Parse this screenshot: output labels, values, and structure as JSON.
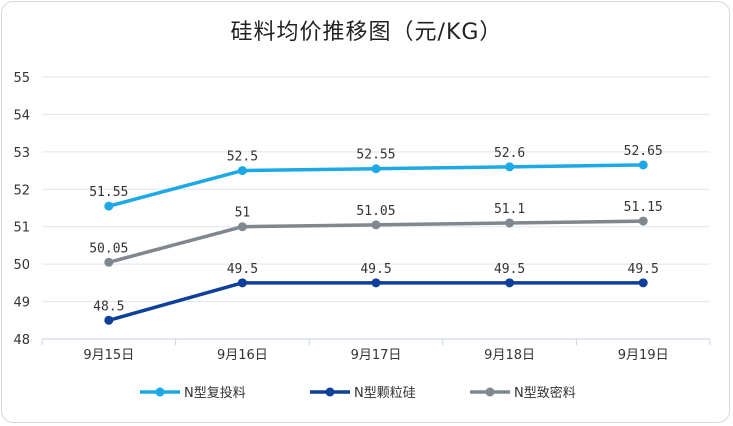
{
  "chart_data": {
    "type": "line",
    "title": "硅料均价推移图（元/KG）",
    "categories": [
      "9月15日",
      "9月16日",
      "9月17日",
      "9月18日",
      "9月19日"
    ],
    "ylim": [
      48,
      55
    ],
    "yticks": [
      "48",
      "49",
      "50",
      "51",
      "52",
      "53",
      "54",
      "55"
    ],
    "grid": true,
    "legend_position": "bottom",
    "series": [
      {
        "name": "N型复投料",
        "color": "#1ca9e6",
        "values": [
          51.55,
          52.5,
          52.55,
          52.6,
          52.65
        ],
        "labels": [
          "51.55",
          "52.5",
          "52.55",
          "52.6",
          "52.65"
        ]
      },
      {
        "name": "N型颗粒硅",
        "color": "#0e3f99",
        "values": [
          48.5,
          49.5,
          49.5,
          49.5,
          49.5
        ],
        "labels": [
          "48.5",
          "49.5",
          "49.5",
          "49.5",
          "49.5"
        ]
      },
      {
        "name": "N型致密料",
        "color": "#7f8891",
        "values": [
          50.05,
          51,
          51.05,
          51.1,
          51.15
        ],
        "labels": [
          "50.05",
          "51",
          "51.05",
          "51.1",
          "51.15"
        ]
      }
    ]
  }
}
